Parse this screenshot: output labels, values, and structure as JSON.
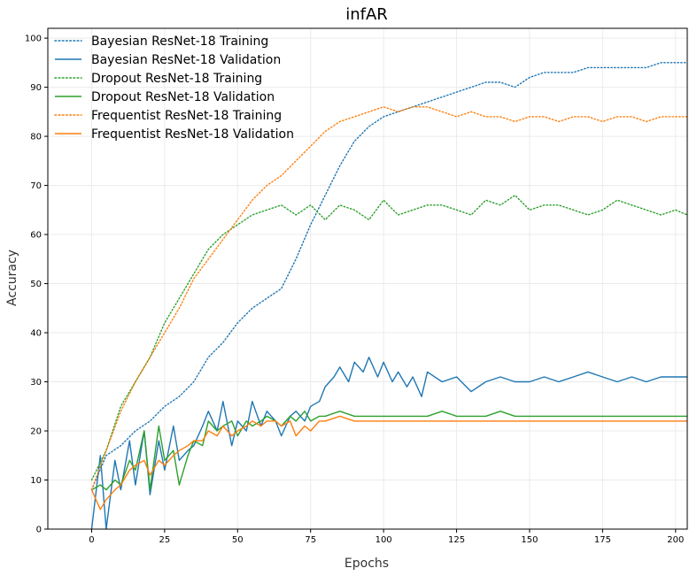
{
  "chart_data": {
    "type": "line",
    "title": "infAR",
    "xlabel": "Epochs",
    "ylabel": "Accuracy",
    "xlim": [
      -15,
      204
    ],
    "ylim": [
      0,
      102
    ],
    "xticks": [
      "0",
      "25",
      "50",
      "75",
      "100",
      "125",
      "150",
      "175",
      "200"
    ],
    "yticks": [
      "0",
      "10",
      "20",
      "30",
      "40",
      "50",
      "60",
      "70",
      "80",
      "90",
      "100"
    ],
    "grid": true,
    "legend": "top-left",
    "colors": {
      "blue": "#1f77b4",
      "green": "#2ca02c",
      "orange": "#ff7f0e"
    },
    "series": [
      {
        "name": "Bayesian ResNet-18 Training",
        "color": "#1f77b4",
        "style": "dotted",
        "x": [
          0,
          5,
          10,
          15,
          20,
          25,
          30,
          35,
          40,
          45,
          50,
          55,
          60,
          65,
          70,
          75,
          80,
          85,
          90,
          95,
          100,
          105,
          110,
          115,
          120,
          125,
          130,
          135,
          140,
          145,
          150,
          155,
          160,
          165,
          170,
          175,
          180,
          185,
          190,
          195,
          200,
          204
        ],
        "y": [
          8,
          15,
          17,
          20,
          22,
          25,
          27,
          30,
          35,
          38,
          42,
          45,
          47,
          49,
          55,
          62,
          68,
          74,
          79,
          82,
          84,
          85,
          86,
          87,
          88,
          89,
          90,
          91,
          91,
          90,
          92,
          93,
          93,
          93,
          94,
          94,
          94,
          94,
          94,
          95,
          95,
          95
        ]
      },
      {
        "name": "Bayesian ResNet-18 Validation",
        "color": "#1f77b4",
        "style": "solid",
        "x": [
          0,
          3,
          5,
          8,
          10,
          13,
          15,
          18,
          20,
          23,
          25,
          28,
          30,
          33,
          35,
          38,
          40,
          43,
          45,
          48,
          50,
          53,
          55,
          58,
          60,
          63,
          65,
          68,
          70,
          73,
          75,
          78,
          80,
          83,
          85,
          88,
          90,
          93,
          95,
          98,
          100,
          103,
          105,
          108,
          110,
          113,
          115,
          120,
          125,
          130,
          135,
          140,
          145,
          150,
          155,
          160,
          165,
          170,
          175,
          180,
          185,
          190,
          195,
          200,
          204
        ],
        "y": [
          0,
          15,
          0,
          14,
          8,
          18,
          9,
          20,
          7,
          18,
          12,
          21,
          14,
          16,
          17,
          21,
          24,
          20,
          26,
          17,
          22,
          20,
          26,
          21,
          24,
          22,
          19,
          23,
          24,
          22,
          25,
          26,
          29,
          31,
          33,
          30,
          34,
          32,
          35,
          31,
          34,
          30,
          32,
          29,
          31,
          27,
          32,
          30,
          31,
          28,
          30,
          31,
          30,
          30,
          31,
          30,
          31,
          32,
          31,
          30,
          31,
          30,
          31,
          31,
          31
        ]
      },
      {
        "name": "Dropout ResNet-18 Training",
        "color": "#2ca02c",
        "style": "dotted",
        "x": [
          0,
          5,
          10,
          15,
          20,
          25,
          30,
          35,
          40,
          45,
          50,
          55,
          60,
          65,
          70,
          75,
          80,
          85,
          90,
          95,
          100,
          105,
          110,
          115,
          120,
          125,
          130,
          135,
          140,
          145,
          150,
          155,
          160,
          165,
          170,
          175,
          180,
          185,
          190,
          195,
          200,
          204
        ],
        "y": [
          10,
          16,
          25,
          30,
          35,
          42,
          47,
          52,
          57,
          60,
          62,
          64,
          65,
          66,
          64,
          66,
          63,
          66,
          65,
          63,
          67,
          64,
          65,
          66,
          66,
          65,
          64,
          67,
          66,
          68,
          65,
          66,
          66,
          65,
          64,
          65,
          67,
          66,
          65,
          64,
          65,
          64
        ]
      },
      {
        "name": "Dropout ResNet-18 Validation",
        "color": "#2ca02c",
        "style": "solid",
        "x": [
          0,
          3,
          5,
          8,
          10,
          13,
          15,
          18,
          20,
          23,
          25,
          28,
          30,
          33,
          35,
          38,
          40,
          43,
          45,
          48,
          50,
          53,
          55,
          58,
          60,
          63,
          65,
          68,
          70,
          73,
          75,
          78,
          80,
          85,
          90,
          95,
          100,
          105,
          110,
          115,
          120,
          125,
          130,
          135,
          140,
          145,
          150,
          155,
          160,
          165,
          170,
          175,
          180,
          185,
          190,
          195,
          200,
          204
        ],
        "y": [
          8,
          9,
          8,
          10,
          9,
          14,
          12,
          20,
          8,
          21,
          14,
          16,
          9,
          15,
          18,
          17,
          22,
          20,
          21,
          22,
          19,
          22,
          21,
          22,
          23,
          22,
          21,
          23,
          22,
          24,
          22,
          23,
          23,
          24,
          23,
          23,
          23,
          23,
          23,
          23,
          24,
          23,
          23,
          23,
          24,
          23,
          23,
          23,
          23,
          23,
          23,
          23,
          23,
          23,
          23,
          23,
          23,
          23
        ]
      },
      {
        "name": "Frequentist ResNet-18 Training",
        "color": "#ff7f0e",
        "style": "dotted",
        "x": [
          0,
          5,
          10,
          15,
          20,
          25,
          30,
          35,
          40,
          45,
          50,
          55,
          60,
          65,
          70,
          75,
          80,
          85,
          90,
          95,
          100,
          105,
          110,
          115,
          120,
          125,
          130,
          135,
          140,
          145,
          150,
          155,
          160,
          165,
          170,
          175,
          180,
          185,
          190,
          195,
          200,
          204
        ],
        "y": [
          8,
          16,
          24,
          30,
          35,
          40,
          45,
          51,
          55,
          59,
          63,
          67,
          70,
          72,
          75,
          78,
          81,
          83,
          84,
          85,
          86,
          85,
          86,
          86,
          85,
          84,
          85,
          84,
          84,
          83,
          84,
          84,
          83,
          84,
          84,
          83,
          84,
          84,
          83,
          84,
          84,
          84
        ]
      },
      {
        "name": "Frequentist ResNet-18 Validation",
        "color": "#ff7f0e",
        "style": "solid",
        "x": [
          0,
          3,
          5,
          8,
          10,
          13,
          15,
          18,
          20,
          23,
          25,
          28,
          30,
          33,
          35,
          38,
          40,
          43,
          45,
          48,
          50,
          53,
          55,
          58,
          60,
          63,
          65,
          68,
          70,
          73,
          75,
          78,
          80,
          85,
          90,
          95,
          100,
          105,
          110,
          115,
          120,
          125,
          130,
          135,
          140,
          145,
          150,
          155,
          160,
          165,
          170,
          175,
          180,
          185,
          190,
          195,
          200,
          204
        ],
        "y": [
          8,
          4,
          6,
          8,
          9,
          12,
          13,
          14,
          11,
          14,
          13,
          15,
          16,
          17,
          18,
          18,
          20,
          19,
          21,
          19,
          20,
          21,
          22,
          21,
          22,
          22,
          21,
          22,
          19,
          21,
          20,
          22,
          22,
          23,
          22,
          22,
          22,
          22,
          22,
          22,
          22,
          22,
          22,
          22,
          22,
          22,
          22,
          22,
          22,
          22,
          22,
          22,
          22,
          22,
          22,
          22,
          22,
          22
        ]
      }
    ]
  }
}
